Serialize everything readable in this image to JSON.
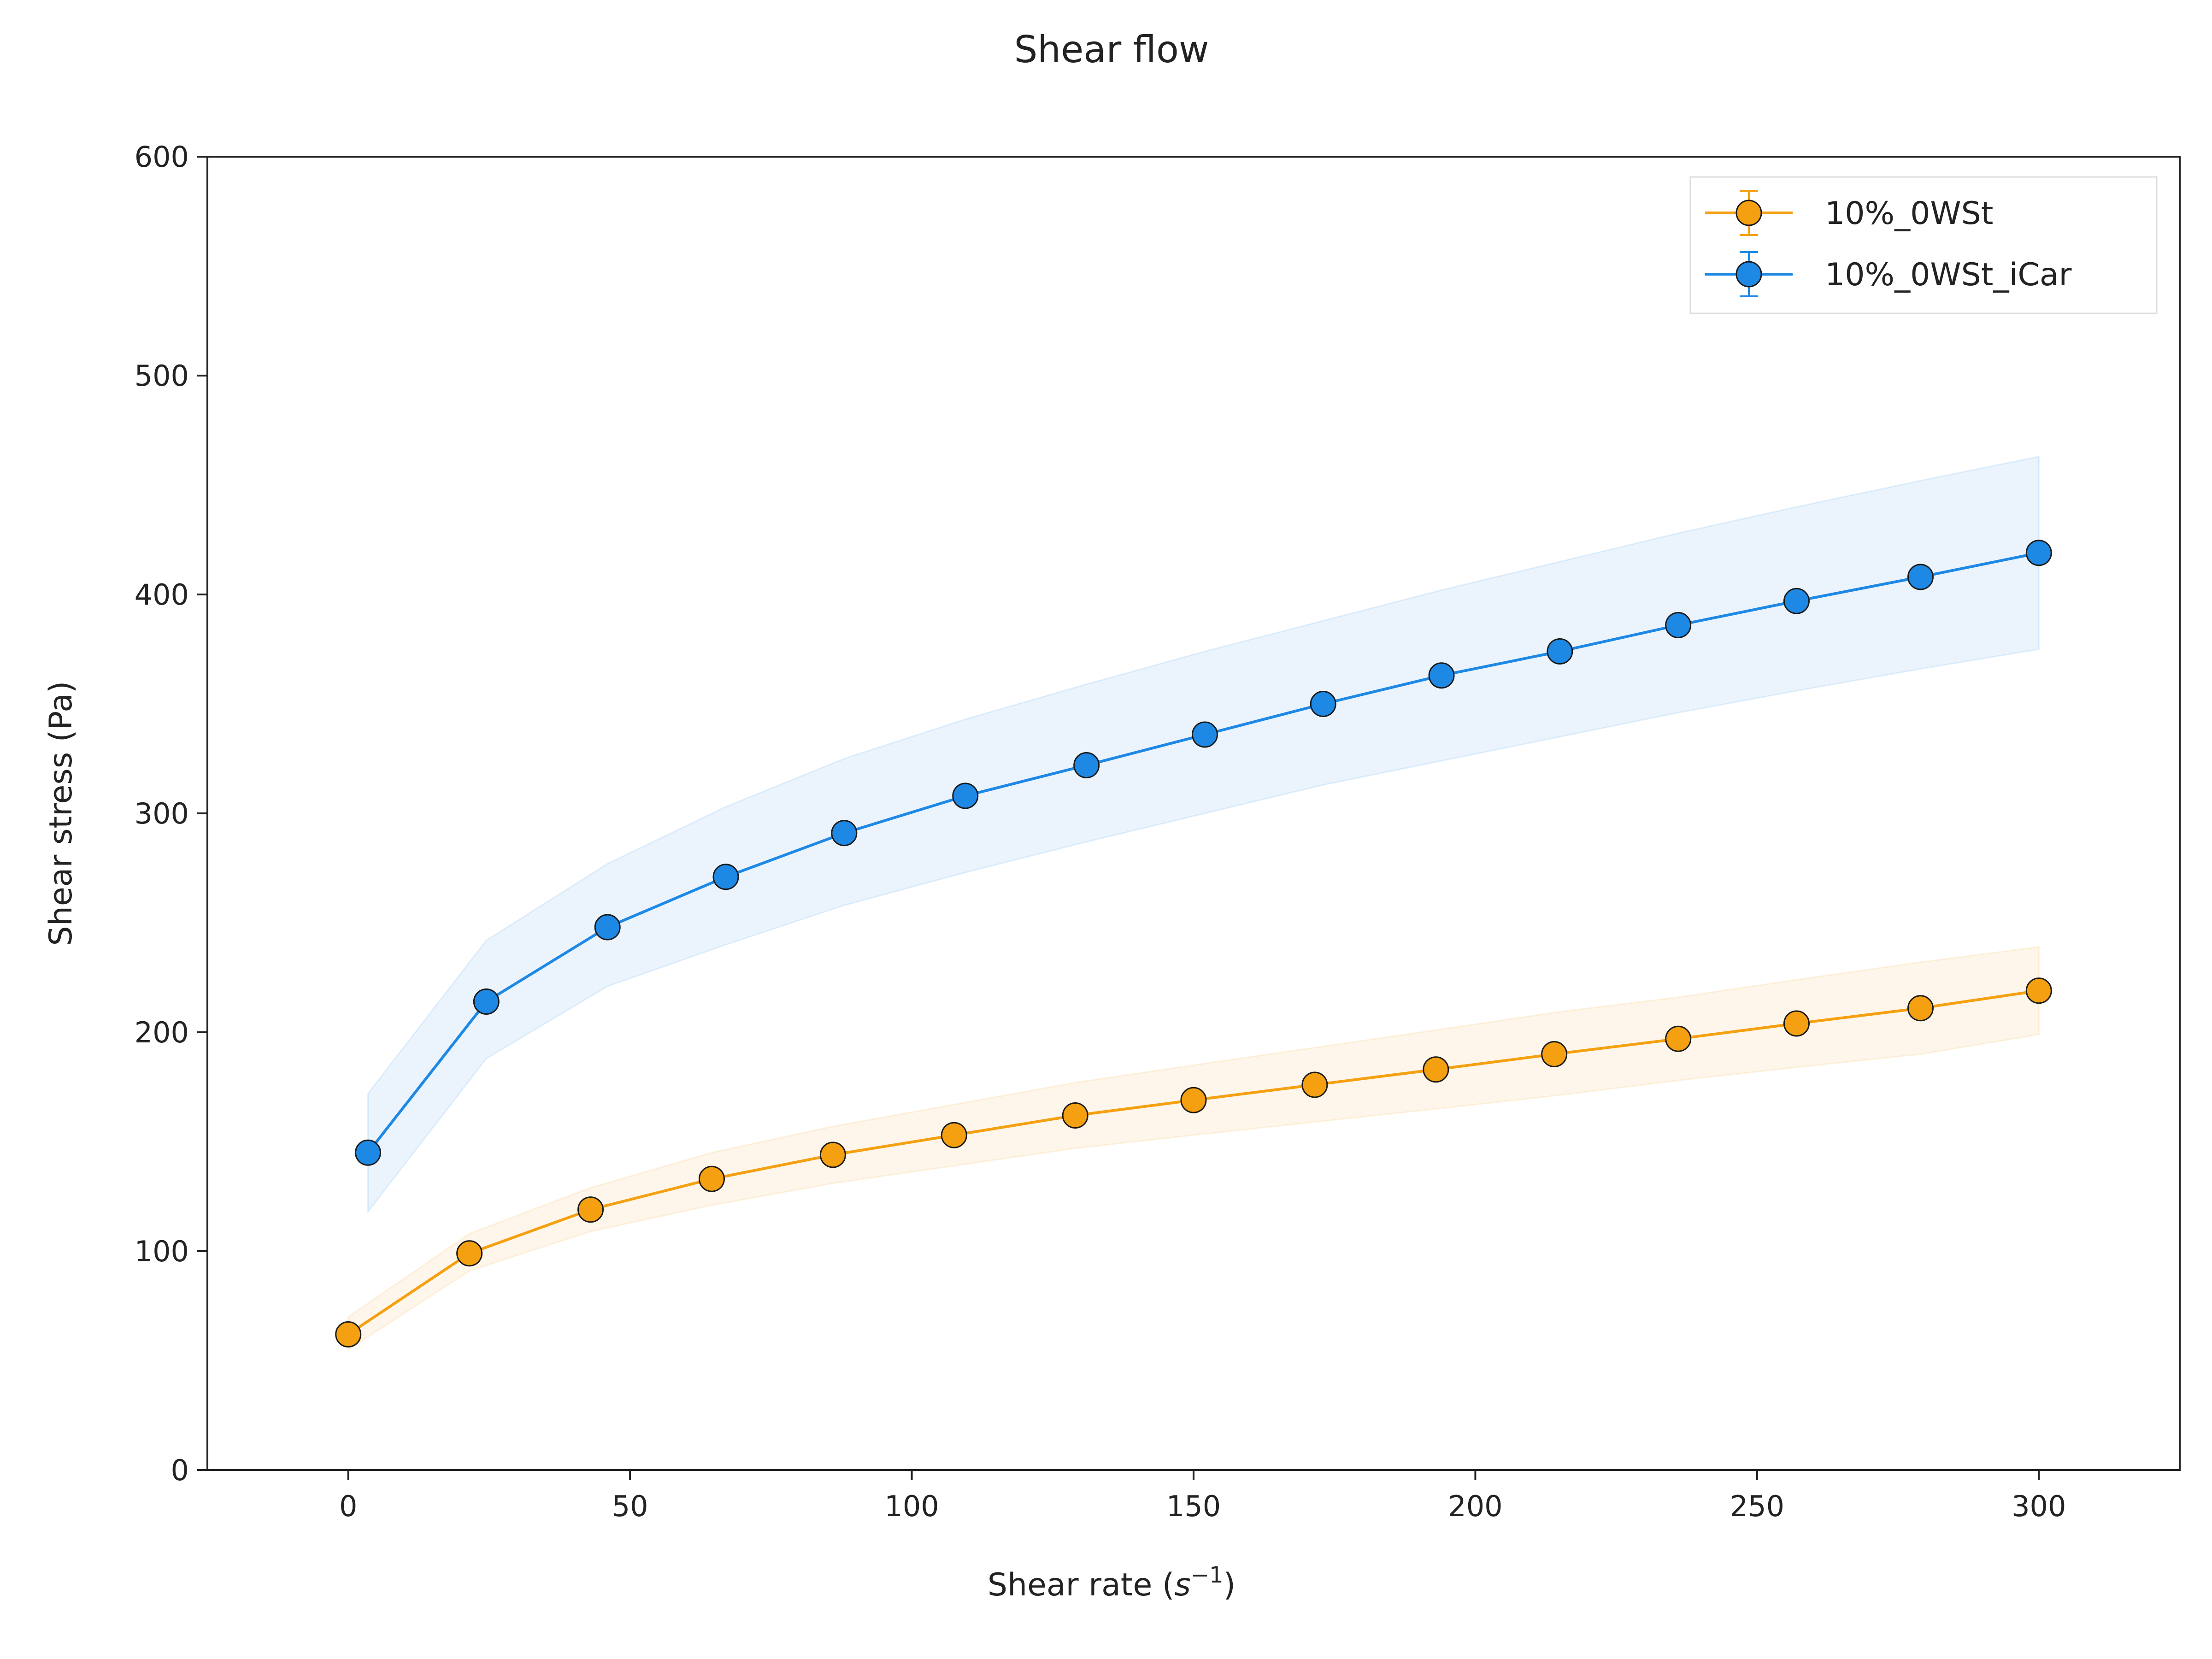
{
  "chart_data": {
    "type": "line",
    "title": "Shear flow",
    "xlabel": "Shear rate (",
    "xlabel_symbol": "s",
    "xlabel_exponent": "−1",
    "xlabel_close": ")",
    "ylabel": "Shear stress (Pa)",
    "xlim": [
      -25,
      325
    ],
    "ylim": [
      0,
      600
    ],
    "xticks": [
      0,
      50,
      100,
      150,
      200,
      250,
      300
    ],
    "yticks": [
      0,
      100,
      200,
      300,
      400,
      500,
      600
    ],
    "grid": false,
    "legend_position": "top-right",
    "series": [
      {
        "name": "10%_0WSt",
        "color": "#F5A011",
        "x": [
          0,
          21.5,
          43,
          64.5,
          86,
          107.5,
          129,
          150,
          171.5,
          193,
          214,
          236,
          257,
          279,
          300
        ],
        "y": [
          62,
          99,
          119,
          133,
          144,
          153,
          162,
          169,
          176,
          183,
          190,
          197,
          204,
          211,
          219
        ],
        "y_lower": [
          55,
          91,
          109,
          121,
          131,
          139,
          147,
          153,
          159,
          165,
          171,
          178,
          184,
          190,
          199
        ],
        "y_upper": [
          70,
          108,
          129,
          145,
          157,
          167,
          177,
          185,
          193,
          201,
          209,
          216,
          224,
          232,
          239
        ]
      },
      {
        "name": "10%_0WSt_iCar",
        "color": "#1E88E5",
        "x": [
          3.5,
          24.5,
          46,
          67,
          88,
          109.5,
          131,
          152,
          173,
          194,
          215,
          236,
          257,
          279,
          300
        ],
        "y": [
          145,
          214,
          248,
          271,
          291,
          308,
          322,
          336,
          350,
          363,
          374,
          386,
          397,
          408,
          419
        ],
        "y_lower": [
          118,
          188,
          221,
          240,
          258,
          273,
          287,
          300,
          313,
          324,
          335,
          346,
          356,
          366,
          375
        ],
        "y_upper": [
          172,
          242,
          277,
          303,
          325,
          343,
          359,
          374,
          388,
          402,
          415,
          428,
          440,
          452,
          463
        ]
      }
    ]
  }
}
